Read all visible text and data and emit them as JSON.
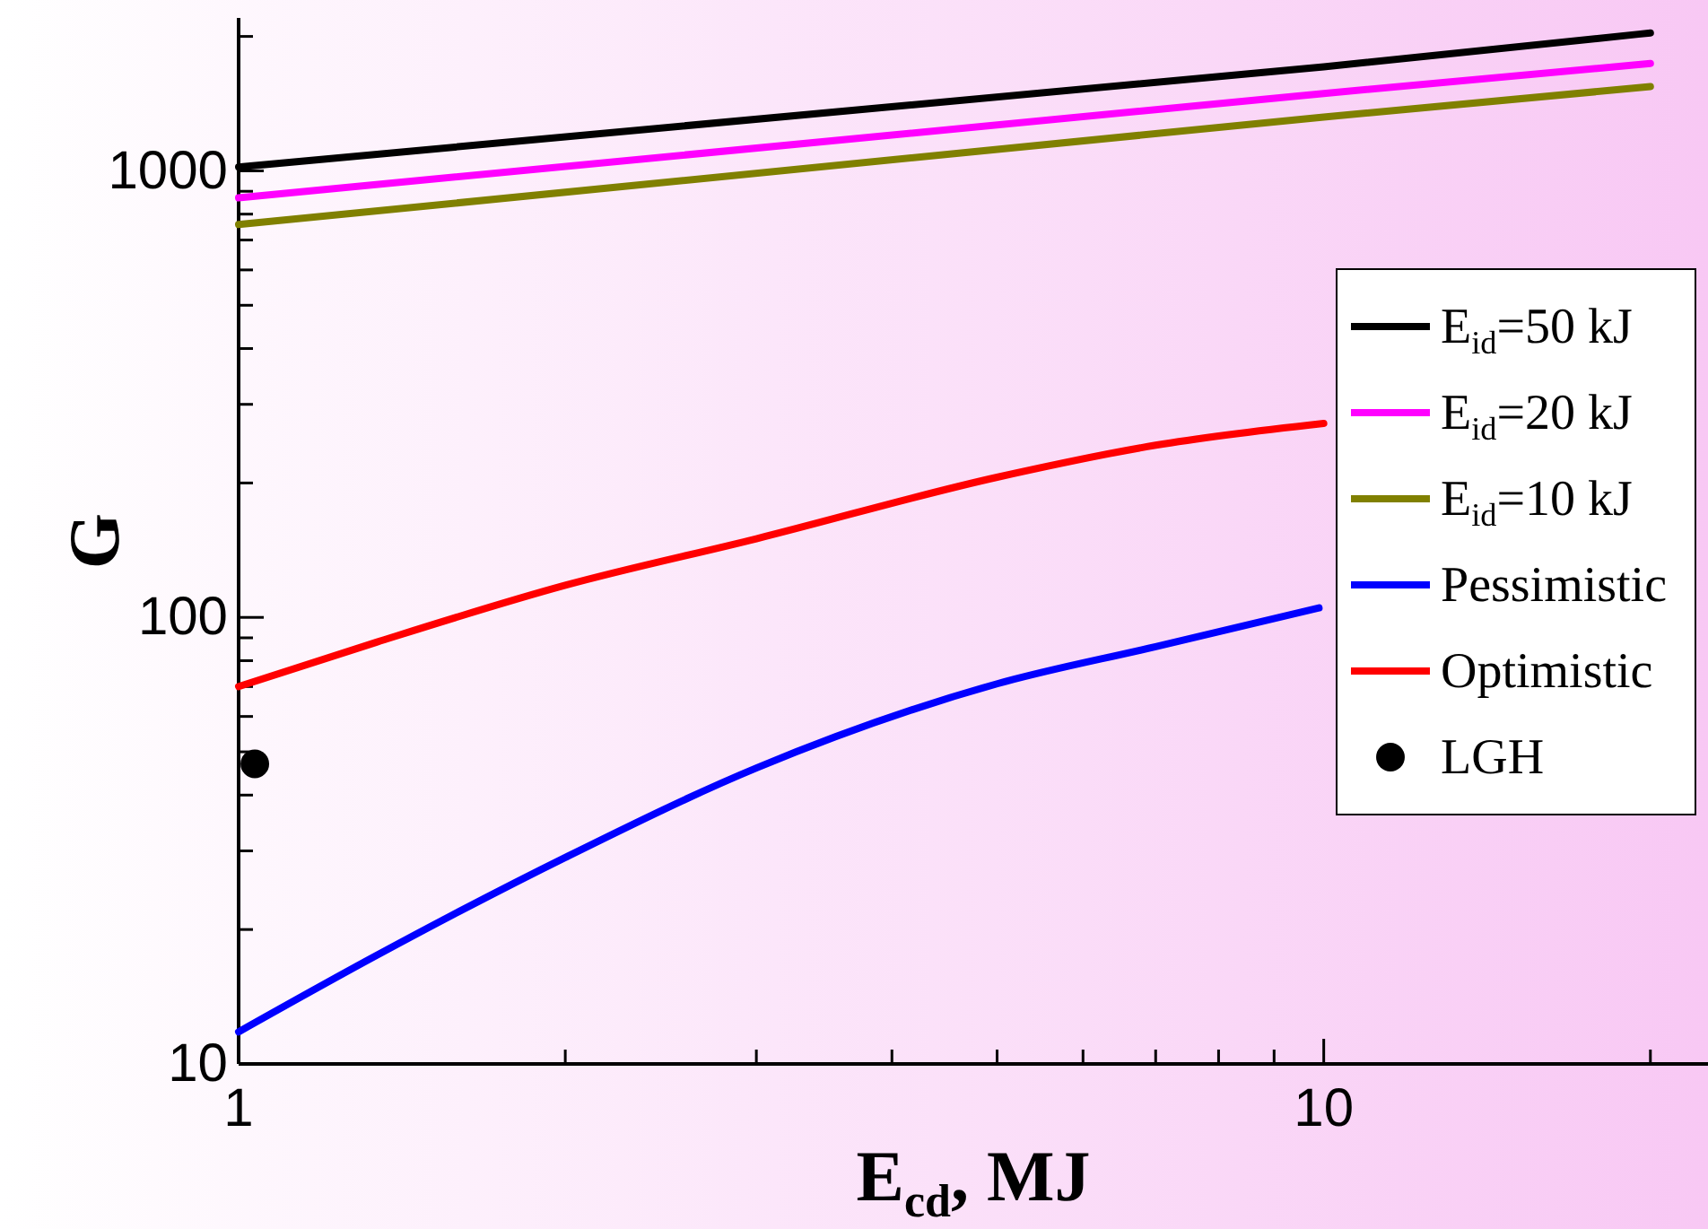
{
  "chart_data": {
    "type": "line",
    "xlabel": "E$_{cd}$, MJ",
    "ylabel": "G",
    "log": "xy",
    "xlim": [
      1,
      22.6
    ],
    "ylim": [
      10,
      2200
    ],
    "xticks": [
      1,
      {
        "value": 2,
        "label": null
      },
      {
        "value": 3,
        "label": null
      },
      {
        "value": 4,
        "label": null
      },
      {
        "value": 5,
        "label": null
      },
      {
        "value": 6,
        "label": null
      },
      {
        "value": 7,
        "label": null
      },
      {
        "value": 8,
        "label": null
      },
      {
        "value": 9,
        "label": null
      },
      10,
      {
        "value": 20,
        "label": null
      }
    ],
    "yticks": [
      10,
      {
        "value": 20,
        "label": null
      },
      {
        "value": 30,
        "label": null
      },
      {
        "value": 40,
        "label": null
      },
      {
        "value": 50,
        "label": null
      },
      {
        "value": 60,
        "label": null
      },
      {
        "value": 70,
        "label": null
      },
      {
        "value": 80,
        "label": null
      },
      {
        "value": 90,
        "label": null
      },
      100,
      {
        "value": 200,
        "label": null
      },
      {
        "value": 300,
        "label": null
      },
      {
        "value": 400,
        "label": null
      },
      {
        "value": 500,
        "label": null
      },
      {
        "value": 600,
        "label": null
      },
      {
        "value": 700,
        "label": null
      },
      {
        "value": 800,
        "label": null
      },
      {
        "value": 900,
        "label": null
      },
      1000,
      {
        "value": 2000,
        "label": null
      }
    ],
    "grid": false,
    "legend": "right",
    "line_style": "solid",
    "series": [
      {
        "name": "E$_{id}$=50 kJ",
        "color": "#000000",
        "x": [
          1,
          10,
          20
        ],
        "values": [
          1020,
          1710,
          2036
        ]
      },
      {
        "name": "E$_{id}$=20 kJ",
        "color": "#ff00ff",
        "x": [
          1,
          10,
          20
        ],
        "values": [
          870,
          1490,
          1740
        ]
      },
      {
        "name": "E$_{id}$=10 kJ",
        "color": "#808000",
        "x": [
          1,
          10,
          20
        ],
        "values": [
          758,
          1320,
          1544
        ]
      },
      {
        "name": "Pessimistic",
        "color": "#0000ff",
        "x": [
          1,
          1.34,
          2,
          3,
          5,
          7,
          9.9
        ],
        "values": [
          11.8,
          17.5,
          29,
          46,
          71,
          86,
          105
        ]
      },
      {
        "name": "Optimistic",
        "color": "#ff0000",
        "x": [
          1,
          1.34,
          2,
          3,
          5,
          7,
          10
        ],
        "values": [
          70,
          88,
          118,
          150,
          206,
          243,
          272
        ]
      },
      {
        "name": "LGH",
        "type": "scatter",
        "marker": "circle",
        "color": "#000000",
        "x": [
          1.035
        ],
        "values": [
          47
        ]
      }
    ]
  }
}
